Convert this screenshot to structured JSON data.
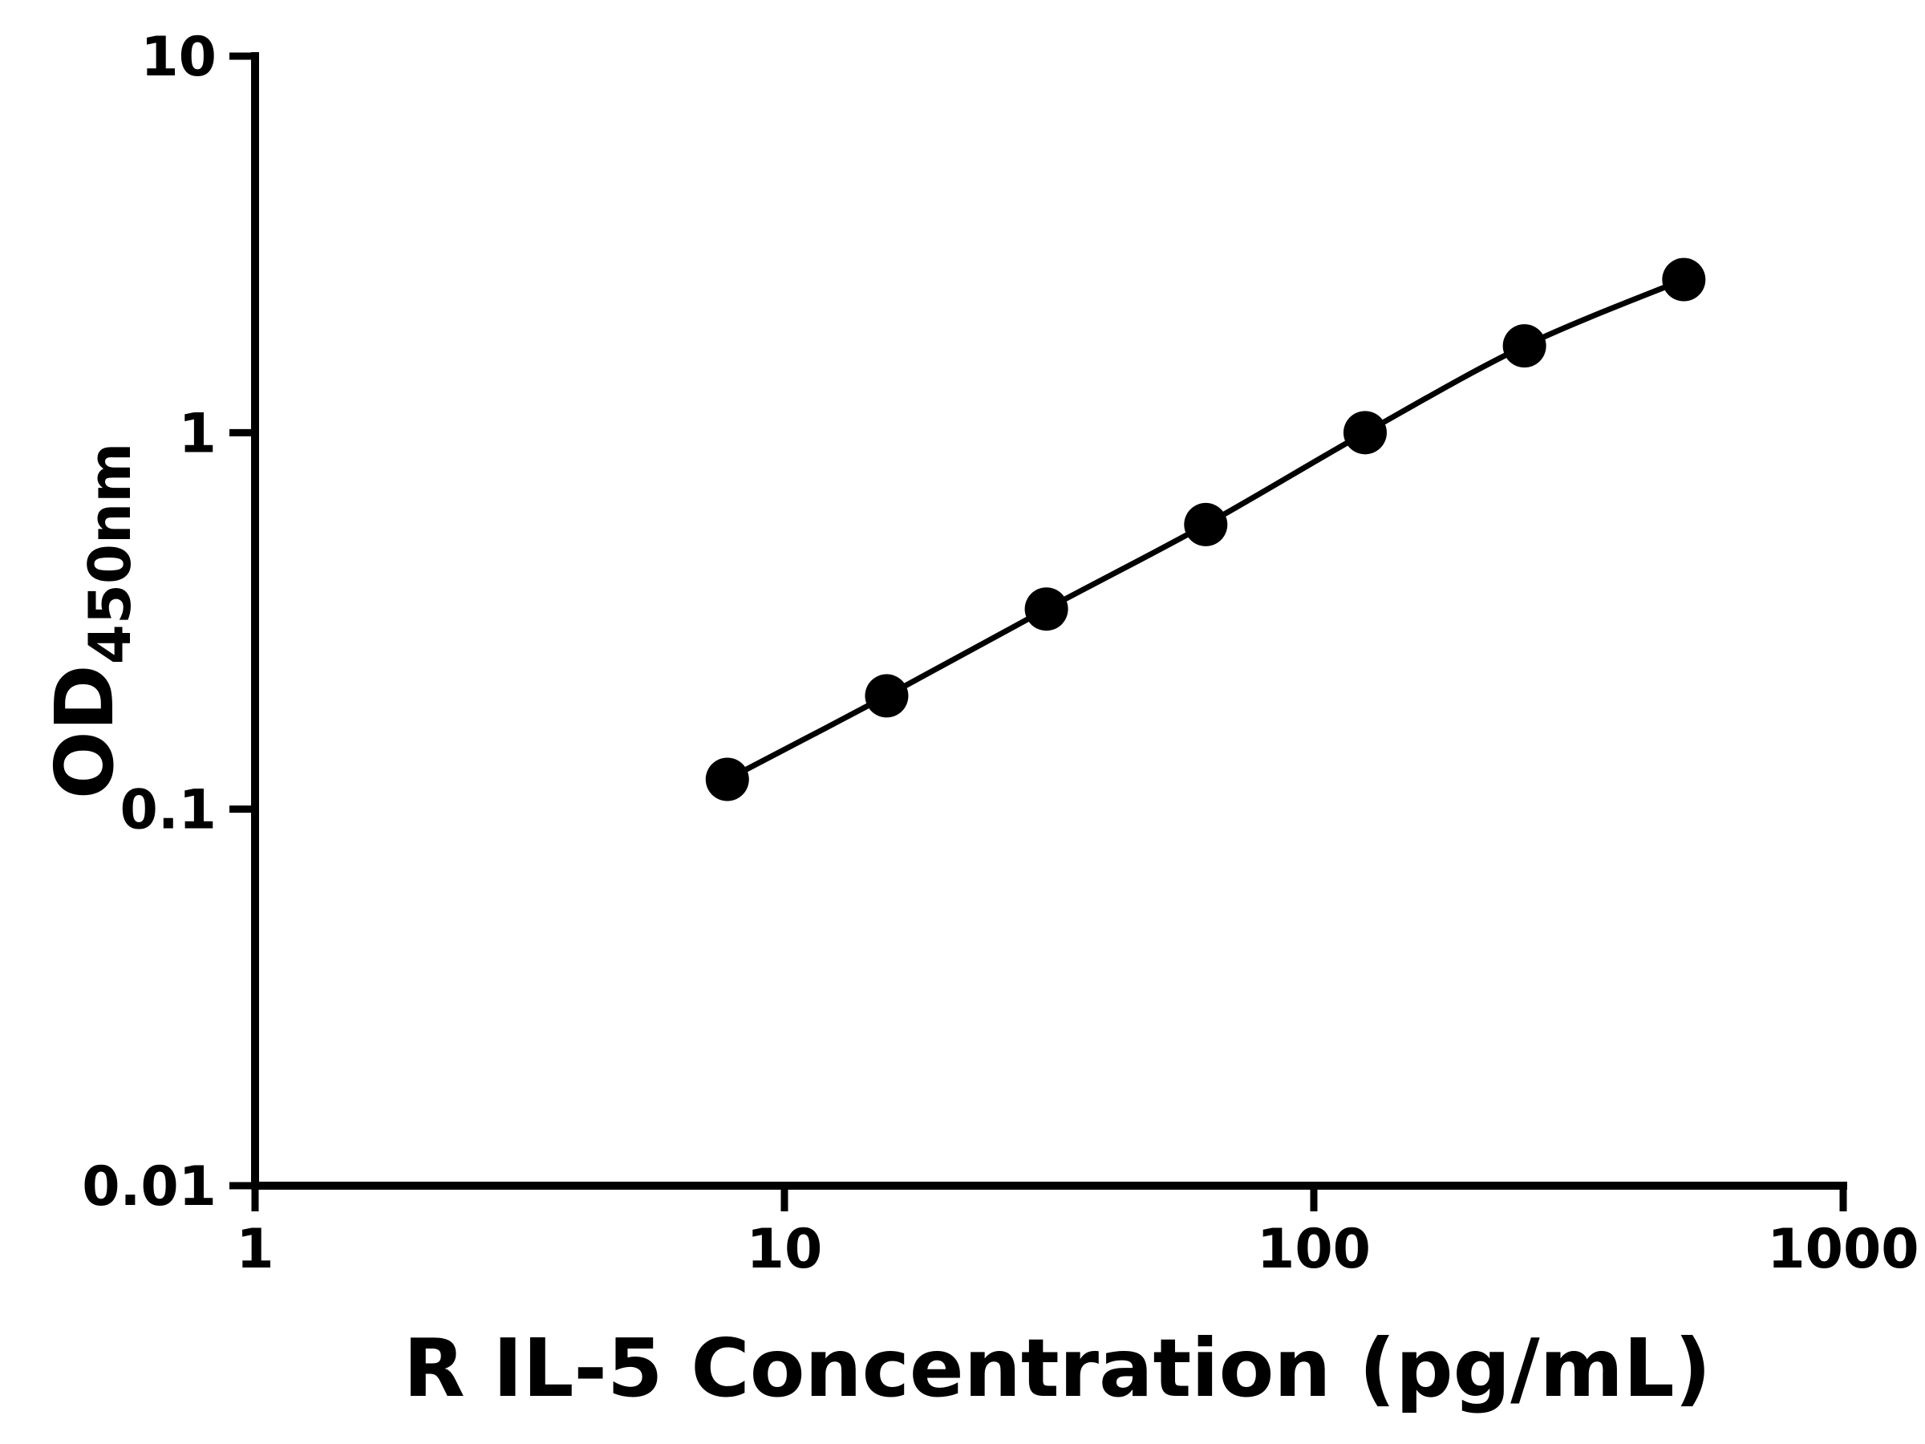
{
  "chart_data": {
    "type": "line",
    "title": "",
    "xlabel": "R IL-5 Concentration (pg/mL)",
    "ylabel_main": "OD",
    "ylabel_sub": "450nm",
    "x": [
      7.8,
      15.6,
      31.25,
      62.5,
      125,
      250,
      500
    ],
    "y": [
      0.12,
      0.2,
      0.34,
      0.57,
      1.0,
      1.7,
      2.55
    ],
    "x_scale": "log",
    "y_scale": "log",
    "xlim": [
      1,
      1000
    ],
    "ylim": [
      0.01,
      10
    ],
    "x_ticks": [
      1,
      10,
      100,
      1000
    ],
    "x_tick_labels": [
      "1",
      "10",
      "100",
      "1000"
    ],
    "y_ticks": [
      0.01,
      0.1,
      1,
      10
    ],
    "y_tick_labels": [
      "0.01",
      "0.1",
      "1",
      "10"
    ],
    "grid": false,
    "legend": false,
    "marker": "circle",
    "marker_color": "#000000",
    "line_color": "#000000",
    "axis_color": "#000000",
    "background": "#ffffff"
  }
}
